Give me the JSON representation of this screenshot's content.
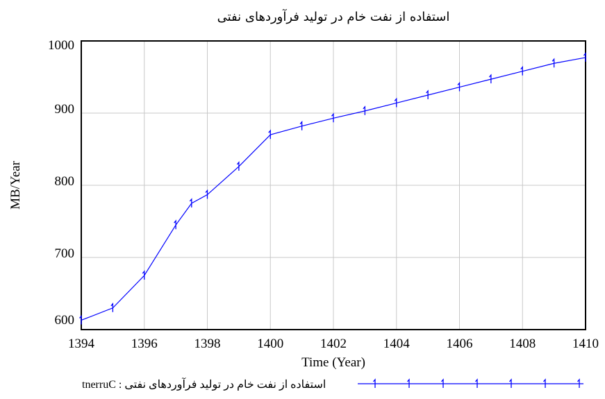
{
  "chart_data": {
    "type": "line",
    "title": "استفاده از نفت خام در تولید فرآوردهای نفتی",
    "xlabel": "Time (Year)",
    "ylabel": "MB/Year",
    "x": [
      1394,
      1395,
      1396,
      1397,
      1397.5,
      1398,
      1399,
      1400,
      1401,
      1402,
      1403,
      1404,
      1405,
      1406,
      1407,
      1408,
      1409,
      1410
    ],
    "series": [
      {
        "name": "tnerruC : استفاده از نفت خام در تولید فرآوردهای نفتی",
        "color": "#0000ff",
        "values": [
          613,
          630,
          675,
          745,
          775,
          787,
          826,
          870,
          882,
          893,
          903,
          914,
          925,
          936,
          947,
          958,
          969,
          977
        ]
      }
    ],
    "xlim": [
      1394,
      1410
    ],
    "xticks": [
      1394,
      1396,
      1398,
      1400,
      1402,
      1404,
      1406,
      1408,
      1410
    ],
    "ylim": [
      600,
      1000
    ],
    "yticks": [
      600,
      700,
      800,
      900,
      1000
    ],
    "grid": true
  }
}
